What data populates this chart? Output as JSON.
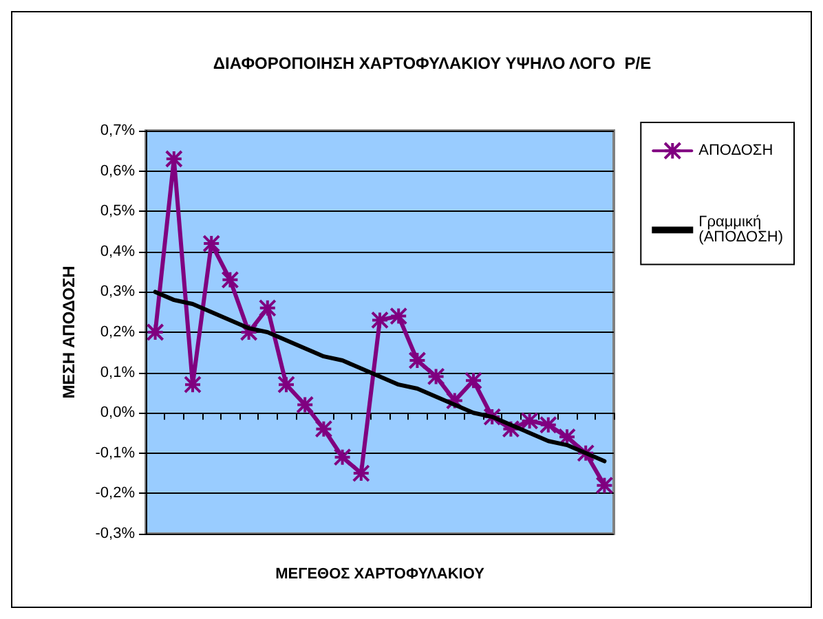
{
  "chart_data": {
    "type": "line",
    "title": "ΔΙΑΦΟΡΟΠΟΙΗΣΗ ΧΑΡΤΟΦΥΛΑΚΙΟΥ ΥΨΗΛΟ ΛΟΓΟ  Ρ/Ε",
    "xlabel": "ΜΕΓΕΘΟΣ ΧΑΡΤΟΦΥΛΑΚΙΟΥ",
    "ylabel": "ΜΕΣΗ ΑΠΟΔΟΣΗ",
    "categories": [
      null,
      null,
      null,
      null,
      null,
      null,
      null,
      null,
      null,
      null,
      null,
      null,
      null,
      null,
      null,
      null,
      null,
      null,
      null,
      null,
      null,
      null,
      null,
      null,
      null
    ],
    "ylim": [
      -0.3,
      0.7
    ],
    "yticks": [
      {
        "value": -0.3,
        "label": "-0,3%"
      },
      {
        "value": -0.2,
        "label": "-0,2%"
      },
      {
        "value": -0.1,
        "label": "-0,1%"
      },
      {
        "value": 0,
        "label": "0,0%"
      },
      {
        "value": 0.1,
        "label": "0,1%"
      },
      {
        "value": 0.2,
        "label": "0,2%"
      },
      {
        "value": 0.3,
        "label": "0,3%"
      },
      {
        "value": 0.4,
        "label": "0,4%"
      },
      {
        "value": 0.5,
        "label": "0,5%"
      },
      {
        "value": 0.6,
        "label": "0,6%"
      },
      {
        "value": 0.7,
        "label": "0,7%"
      }
    ],
    "series": [
      {
        "name": "ΑΠΟΔΟΣΗ",
        "color": "#800080",
        "marker": "cross",
        "values": [
          0.2,
          0.63,
          0.07,
          0.42,
          0.33,
          0.2,
          0.26,
          0.07,
          0.02,
          -0.04,
          -0.11,
          -0.15,
          0.23,
          0.24,
          0.13,
          0.09,
          0.03,
          0.08,
          -0.01,
          -0.04,
          -0.02,
          -0.03,
          -0.06,
          -0.1,
          -0.18
        ]
      },
      {
        "name": "Γραμμική (ΑΠΟΔΟΣΗ)",
        "color": "#000000",
        "marker": "none",
        "values": [
          0.3,
          0.28,
          0.27,
          0.25,
          0.23,
          0.21,
          0.2,
          0.18,
          0.16,
          0.14,
          0.13,
          0.11,
          0.09,
          0.07,
          0.06,
          0.04,
          0.02,
          0.0,
          -0.01,
          -0.03,
          -0.05,
          -0.07,
          -0.08,
          -0.1,
          -0.12
        ]
      }
    ],
    "grid": "y",
    "legend": "right",
    "tick_labels": "y",
    "line_style": "solid"
  }
}
